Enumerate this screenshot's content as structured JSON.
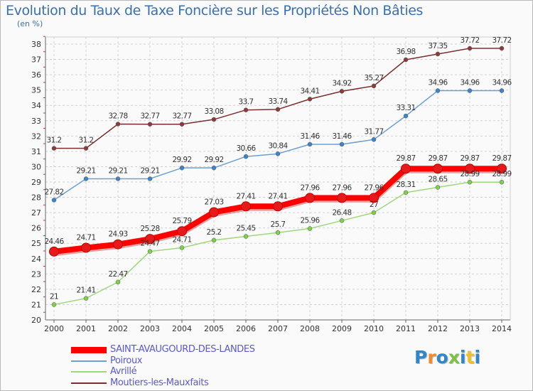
{
  "chart_data": {
    "type": "line",
    "title": "Evolution du Taux de Taxe Foncière sur les Propriétés Non Bâties",
    "subtitle": "(en %)",
    "xlabel": "",
    "ylabel": "",
    "ylim": [
      20,
      38
    ],
    "grid": true,
    "categories": [
      "2000",
      "2001",
      "2002",
      "2003",
      "2004",
      "2005",
      "2006",
      "2007",
      "2008",
      "2009",
      "2010",
      "2011",
      "2012",
      "2013",
      "2014"
    ],
    "y_ticks": [
      20,
      21,
      22,
      23,
      24,
      25,
      26,
      27,
      28,
      29,
      30,
      31,
      32,
      33,
      34,
      35,
      36,
      37,
      38
    ],
    "series": [
      {
        "name": "Moutiers-les-Mauxfaits",
        "color": "#7a2f2f",
        "marker": "#8b3b3b",
        "values": [
          31.2,
          31.2,
          32.78,
          32.77,
          32.77,
          33.08,
          33.7,
          33.74,
          34.41,
          34.92,
          35.27,
          36.98,
          37.35,
          37.72,
          37.72
        ],
        "labels": [
          "31.2",
          "31.2",
          "32.78",
          "32.77",
          "32.77",
          "33.08",
          "33.7",
          "33.74",
          "34.41",
          "34.92",
          "35.27",
          "36.98",
          "37.35",
          "37.72",
          "37.72"
        ]
      },
      {
        "name": "Poiroux",
        "color": "#6d9fcf",
        "marker": "#3f83c9",
        "values": [
          27.82,
          29.21,
          29.21,
          29.21,
          29.92,
          29.92,
          30.66,
          30.84,
          31.46,
          31.46,
          31.77,
          33.31,
          34.96,
          34.96,
          34.96
        ],
        "labels": [
          "27.82",
          "29.21",
          "29.21",
          "29.21",
          "29.92",
          "29.92",
          "30.66",
          "30.84",
          "31.46",
          "31.46",
          "31.77",
          "33.31",
          "34.96",
          "34.96",
          "34.96"
        ]
      },
      {
        "name": "Avrillé",
        "color": "#9fd87a",
        "marker": "#7fcf4a",
        "values": [
          21,
          21.41,
          22.47,
          24.47,
          24.71,
          25.2,
          25.45,
          25.7,
          25.96,
          26.48,
          27,
          28.31,
          28.65,
          28.99,
          28.99
        ],
        "labels": [
          "21",
          "21.41",
          "22.47",
          "24.47",
          "24.71",
          "25.2",
          "25.45",
          "25.7",
          "25.96",
          "26.48",
          "27",
          "28.31",
          "28.65",
          "28.99",
          "28.99"
        ]
      },
      {
        "name": "SAINT-AVAUGOURD-DES-LANDES",
        "color": "#ff0000",
        "marker": "#e61a1a",
        "values": [
          24.46,
          24.71,
          24.93,
          25.28,
          25.79,
          27.03,
          27.41,
          27.41,
          27.96,
          27.96,
          27.96,
          29.87,
          29.87,
          29.87,
          29.87
        ],
        "labels": [
          "24.46",
          "24.71",
          "24.93",
          "25.28",
          "25.79",
          "27.03",
          "27.41",
          "27.41",
          "27.96",
          "27.96",
          "27.96",
          "29.87",
          "29.87",
          "29.87",
          "29.87"
        ]
      }
    ]
  },
  "legend": [
    {
      "label": "SAINT-AVAUGOURD-DES-LANDES",
      "color": "#ff0000",
      "weight": "thick"
    },
    {
      "label": "Poiroux",
      "color": "#6d9fcf",
      "weight": "thin"
    },
    {
      "label": "Avrillé",
      "color": "#9fd87a",
      "weight": "thin"
    },
    {
      "label": "Moutiers-les-Mauxfaits",
      "color": "#7a2f2f",
      "weight": "thin"
    }
  ],
  "logo": {
    "text": "Proxiti",
    "colors": [
      "#2f86c8",
      "#f08a2a",
      "#2f86c8",
      "#7cc142",
      "#2f86c8",
      "#f0c02a",
      "#2f86c8"
    ]
  }
}
